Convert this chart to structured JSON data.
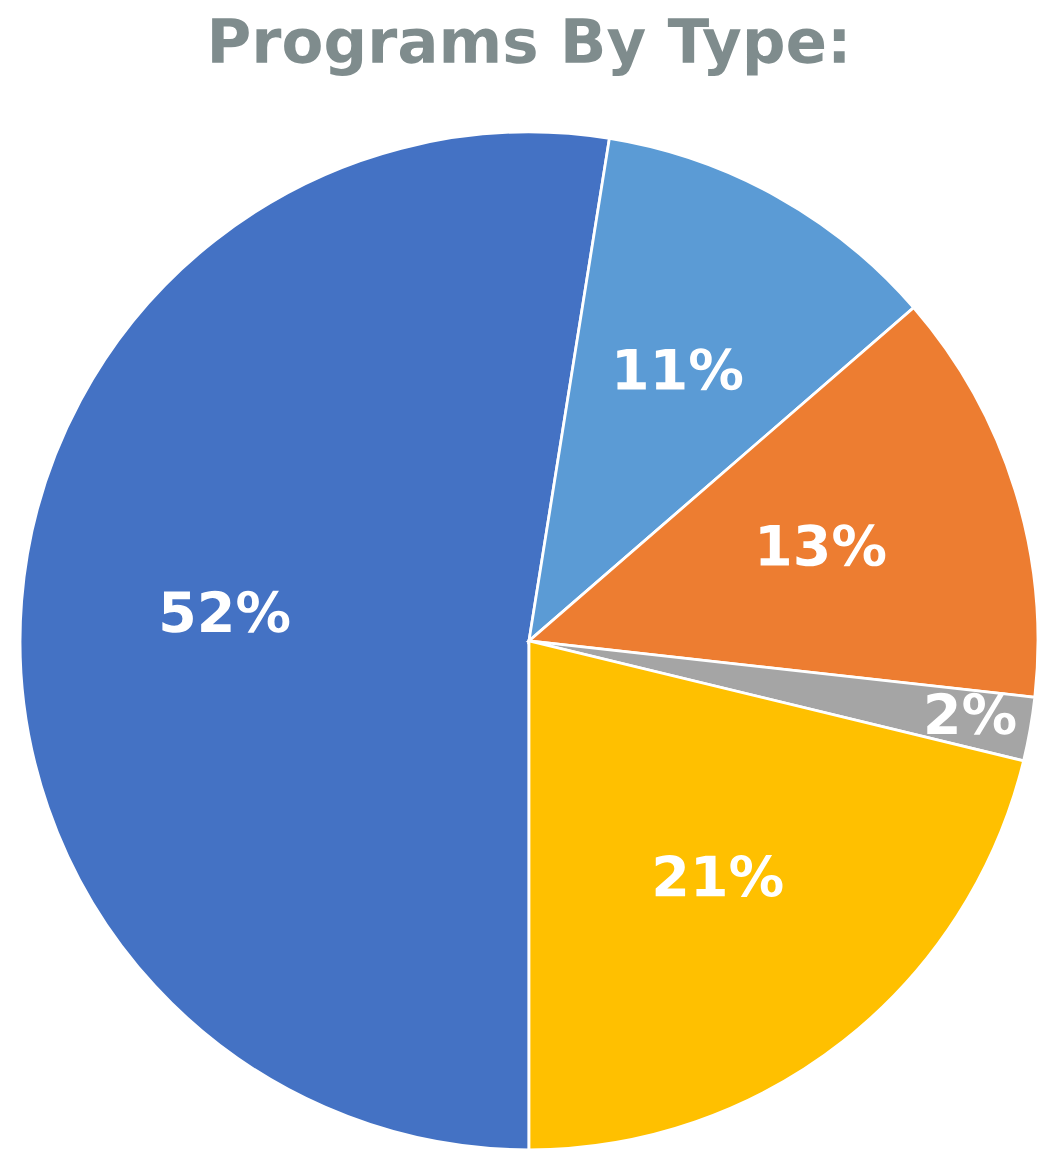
{
  "chart_data": {
    "type": "pie",
    "title": "Programs By Type:",
    "categories": [
      null,
      null,
      null,
      null,
      null
    ],
    "values": [
      52,
      11,
      13,
      2,
      21
    ],
    "colors": [
      "#4472c4",
      "#5b9bd5",
      "#ed7d31",
      "#a5a5a5",
      "#ffc000"
    ],
    "value_labels": [
      "52%",
      "11%",
      "13%",
      "2%",
      "21%"
    ]
  }
}
